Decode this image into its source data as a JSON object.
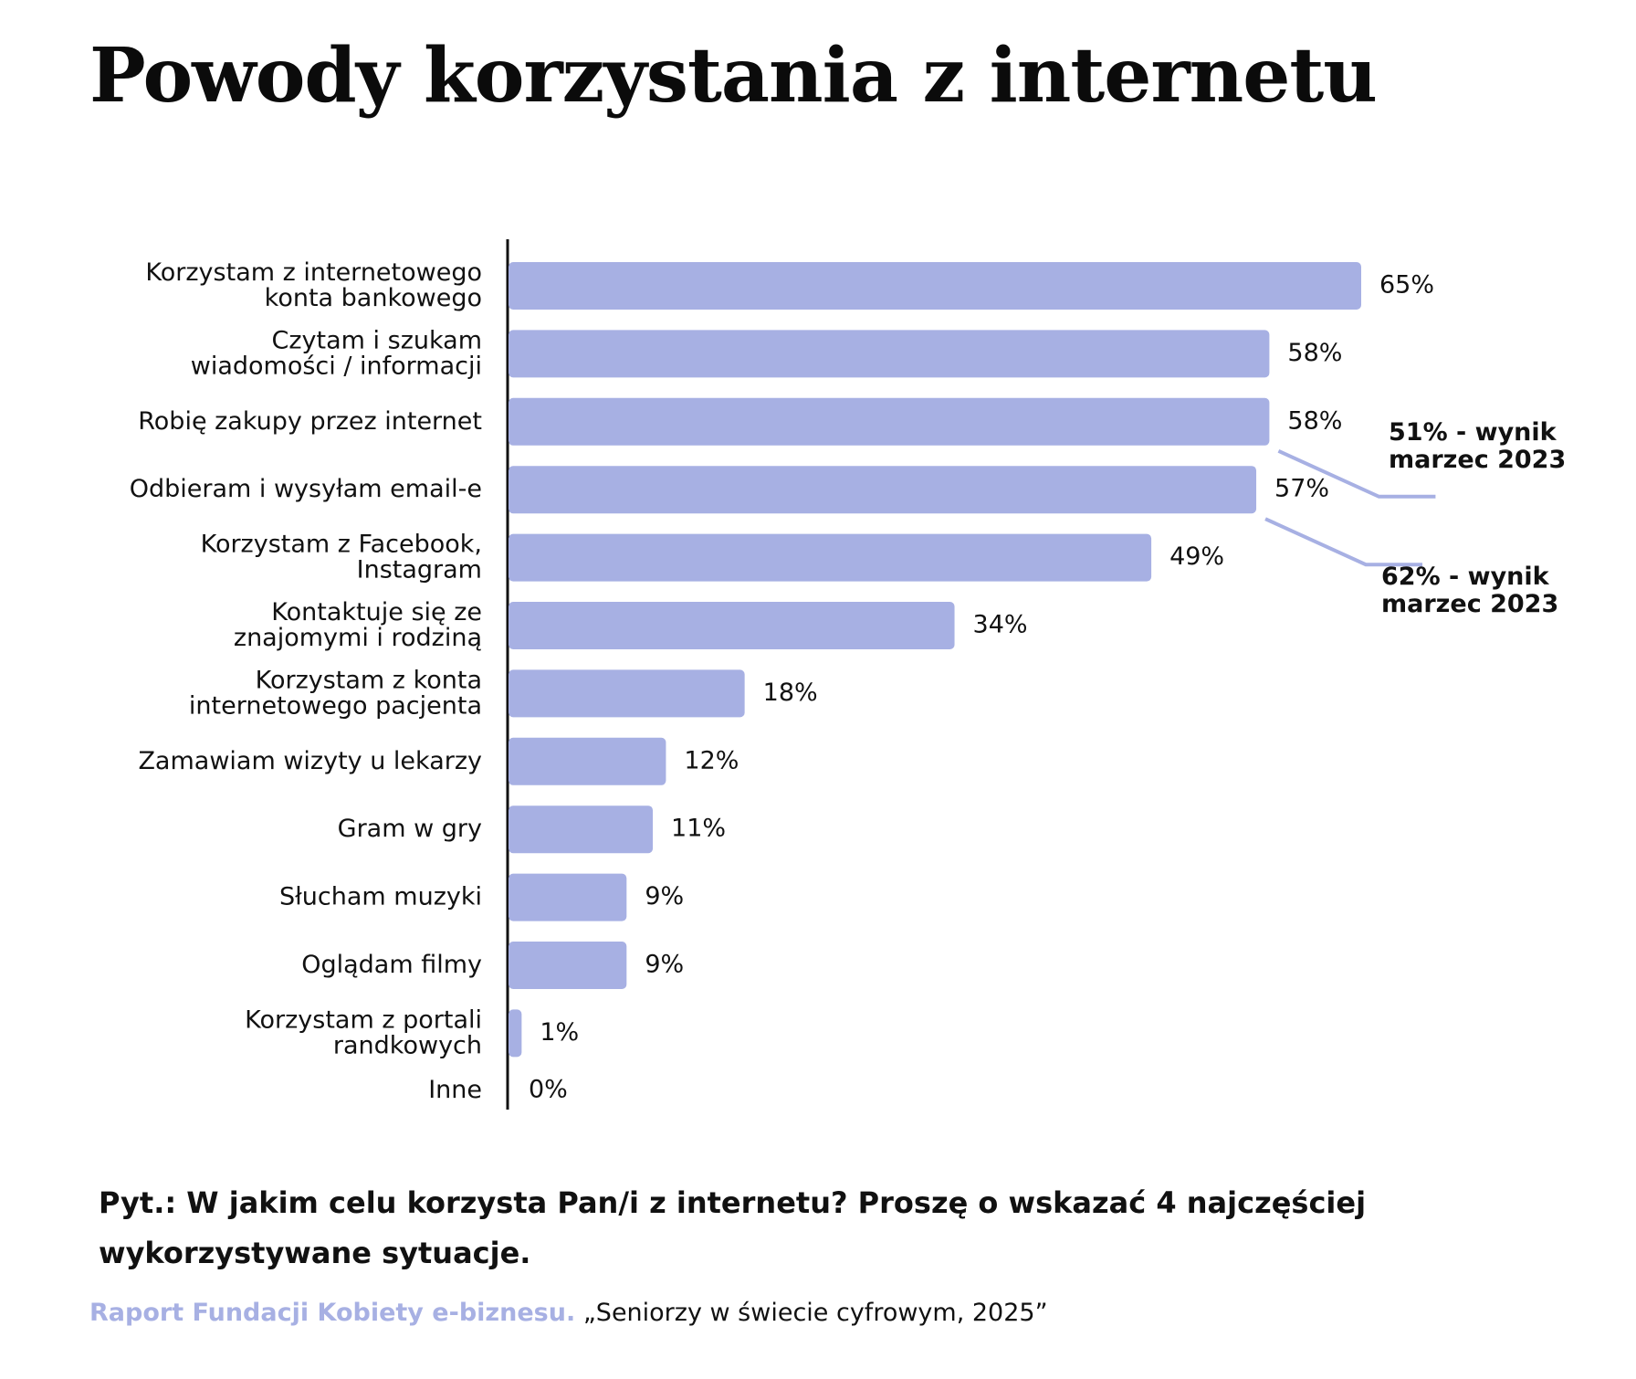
{
  "title": "Powody korzystania z internetu",
  "colors": {
    "bar": "#A7B0E3",
    "annotation_line": "#A7B0E3",
    "source_org": "#A7B0E3",
    "axis": "#111111"
  },
  "chart_data": {
    "type": "bar",
    "orientation": "horizontal",
    "categories": [
      "Korzystam z internetowego konta bankowego",
      "Czytam i szukam wiadomości / informacji",
      "Robię zakupy przez internet",
      "Odbieram i wysyłam email-e",
      "Korzystam z Facebook, Instagram",
      "Kontaktuje się ze znajomymi i rodziną",
      "Korzystam z konta internetowego pacjenta",
      "Zamawiam wizyty u lekarzy",
      "Gram w gry",
      "Słucham muzyki",
      "Oglądam filmy",
      "Korzystam z portali randkowych",
      "Inne"
    ],
    "category_lines": [
      [
        "Korzystam z internetowego",
        "konta bankowego"
      ],
      [
        "Czytam i szukam",
        "wiadomości / informacji"
      ],
      [
        "Robię zakupy przez internet"
      ],
      [
        "Odbieram i wysyłam email-e"
      ],
      [
        "Korzystam z Facebook,",
        "Instagram"
      ],
      [
        "Kontaktuje się ze",
        "znajomymi i rodziną"
      ],
      [
        "Korzystam z konta",
        "internetowego pacjenta"
      ],
      [
        "Zamawiam wizyty u lekarzy"
      ],
      [
        "Gram w gry"
      ],
      [
        "Słucham muzyki"
      ],
      [
        "Oglądam filmy"
      ],
      [
        "Korzystam z portali",
        "randkowych"
      ],
      [
        "Inne"
      ]
    ],
    "values": [
      65,
      58,
      58,
      57,
      49,
      34,
      18,
      12,
      11,
      9,
      9,
      1,
      0
    ],
    "value_labels": [
      "65%",
      "58%",
      "58%",
      "57%",
      "49%",
      "34%",
      "18%",
      "12%",
      "11%",
      "9%",
      "9%",
      "1%",
      "0%"
    ],
    "xlim": [
      0,
      65
    ],
    "grid": false,
    "annotations": [
      {
        "category_index": 2,
        "lines": [
          "51% - wynik",
          "marzec 2023"
        ]
      },
      {
        "category_index": 3,
        "lines": [
          "62% - wynik",
          "marzec 2023"
        ]
      }
    ]
  },
  "question": "Pyt.: W jakim celu korzysta Pan/i z internetu? Proszę o wskazać 4 najczęściej wykorzystywane sytuacje.",
  "source": {
    "org": "Raport Fundacji Kobiety e-biznesu.",
    "publication": "„Seniorzy w świecie cyfrowym, 2025”"
  }
}
